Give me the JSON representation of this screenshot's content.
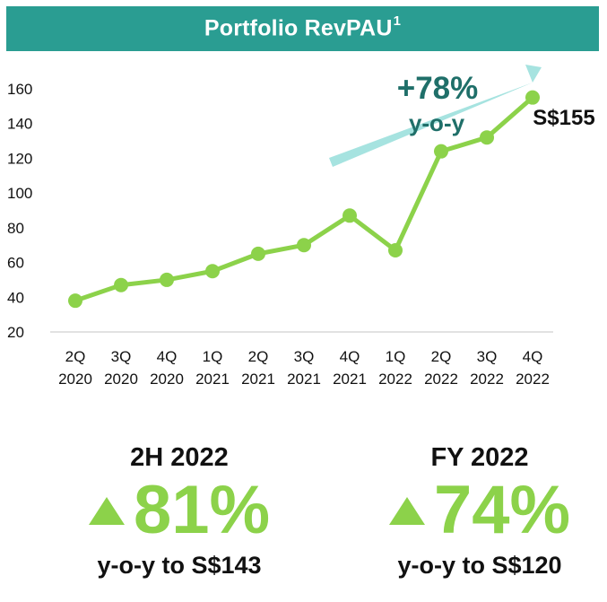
{
  "header": {
    "title": "Portfolio RevPAU",
    "superscript": "1"
  },
  "chart_data": {
    "type": "line",
    "title": "Portfolio RevPAU",
    "categories": [
      [
        "2Q",
        "2020"
      ],
      [
        "3Q",
        "2020"
      ],
      [
        "4Q",
        "2020"
      ],
      [
        "1Q",
        "2021"
      ],
      [
        "2Q",
        "2021"
      ],
      [
        "3Q",
        "2021"
      ],
      [
        "4Q",
        "2021"
      ],
      [
        "1Q",
        "2022"
      ],
      [
        "2Q",
        "2022"
      ],
      [
        "3Q",
        "2022"
      ],
      [
        "4Q",
        "2022"
      ]
    ],
    "values": [
      38,
      47,
      50,
      55,
      65,
      70,
      87,
      67,
      124,
      132,
      155
    ],
    "ylim": [
      20,
      160
    ],
    "yticks": [
      20,
      40,
      60,
      80,
      100,
      120,
      140,
      160
    ],
    "grid": false,
    "series_color": "#8cd24a",
    "end_label": "S$155",
    "annotation": {
      "pct": "+78%",
      "text": "y-o-y",
      "arrow_color": "#a6e3e0",
      "text_color": "#1f6f69"
    }
  },
  "stats": [
    {
      "period": "2H 2022",
      "pct": "81%",
      "footer": "y-o-y to S$143"
    },
    {
      "period": "FY 2022",
      "pct": "74%",
      "footer": "y-o-y to S$120"
    }
  ]
}
